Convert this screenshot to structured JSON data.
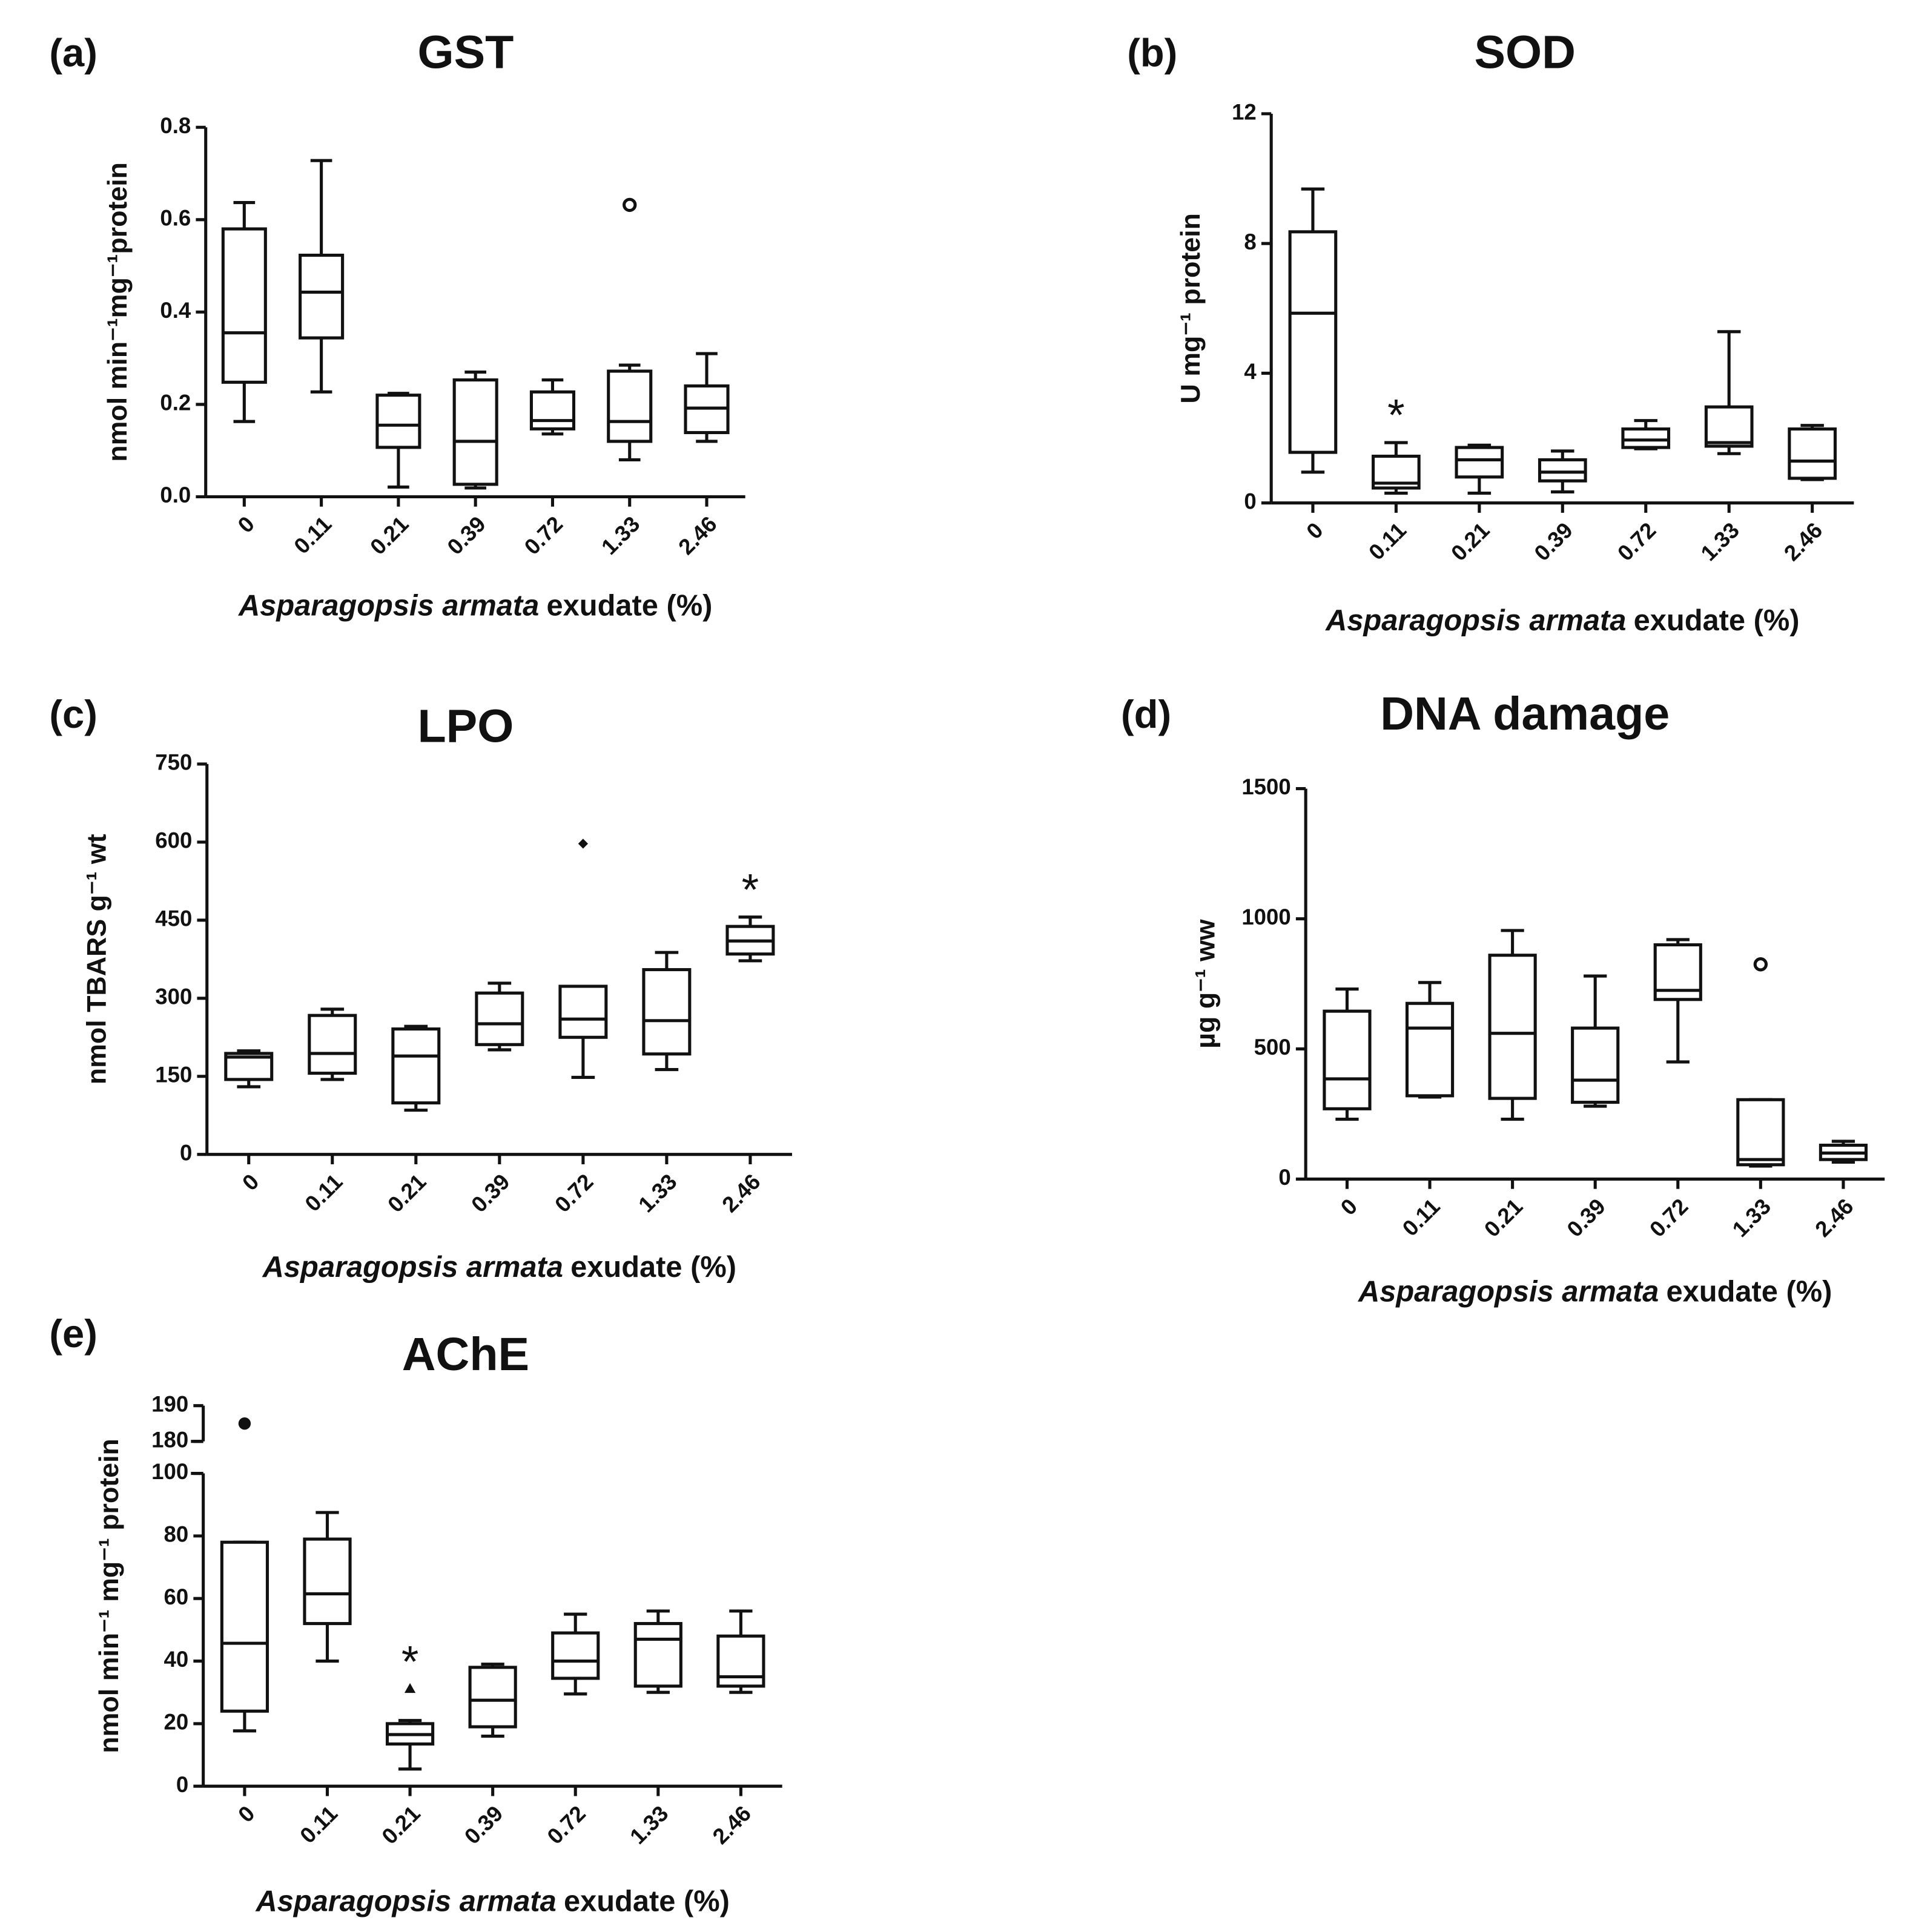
{
  "chart_data": [
    {
      "type": "box",
      "panel": "(a)",
      "title": "GST",
      "ylabel": "nmol min⁻¹mg⁻¹protein",
      "xlabel": [
        "Asparagopsis armata",
        "exudate (%)"
      ],
      "categories": [
        "0",
        "0.11",
        "0.21",
        "0.39",
        "0.72",
        "1.33",
        "2.46"
      ],
      "ylim": [
        0,
        0.8
      ],
      "yticks": [
        {
          "value": 0,
          "label": "0.0"
        },
        0.2,
        0.4,
        0.6,
        0.8
      ],
      "color": "#111111",
      "outlier_marker": "open-circle",
      "boxes": [
        {
          "min": 0.163,
          "q1": 0.248,
          "median": 0.355,
          "q3": 0.58,
          "max": 0.637,
          "outliers": []
        },
        {
          "min": 0.227,
          "q1": 0.344,
          "median": 0.443,
          "q3": 0.523,
          "max": 0.728,
          "outliers": []
        },
        {
          "min": 0.021,
          "q1": 0.107,
          "median": 0.155,
          "q3": 0.22,
          "max": 0.224,
          "outliers": []
        },
        {
          "min": 0.019,
          "q1": 0.027,
          "median": 0.12,
          "q3": 0.253,
          "max": 0.27,
          "outliers": []
        },
        {
          "min": 0.136,
          "q1": 0.147,
          "median": 0.165,
          "q3": 0.227,
          "max": 0.253,
          "outliers": []
        },
        {
          "min": 0.08,
          "q1": 0.12,
          "median": 0.163,
          "q3": 0.272,
          "max": 0.285,
          "outliers": [
            0.632
          ]
        },
        {
          "min": 0.12,
          "q1": 0.139,
          "median": 0.192,
          "q3": 0.24,
          "max": 0.31,
          "outliers": []
        }
      ],
      "annotations": []
    },
    {
      "type": "box",
      "panel": "(b)",
      "title": "SOD",
      "ylabel": "U mg⁻¹ protein",
      "xlabel": [
        "Asparagopsis armata",
        "exudate (%)"
      ],
      "categories": [
        "0",
        "0.11",
        "0.21",
        "0.39",
        "0.72",
        "1.33",
        "2.46"
      ],
      "ylim": [
        0,
        12
      ],
      "yticks": [
        0,
        4,
        8,
        12
      ],
      "color": "#111111",
      "outlier_marker": "open-circle",
      "boxes": [
        {
          "min": 0.95,
          "q1": 1.56,
          "median": 5.85,
          "q3": 8.36,
          "max": 9.68,
          "outliers": []
        },
        {
          "min": 0.3,
          "q1": 0.46,
          "median": 0.61,
          "q3": 1.44,
          "max": 1.86,
          "outliers": []
        },
        {
          "min": 0.3,
          "q1": 0.8,
          "median": 1.33,
          "q3": 1.71,
          "max": 1.78,
          "outliers": []
        },
        {
          "min": 0.34,
          "q1": 0.68,
          "median": 0.95,
          "q3": 1.33,
          "max": 1.6,
          "outliers": []
        },
        {
          "min": 1.67,
          "q1": 1.71,
          "median": 1.94,
          "q3": 2.28,
          "max": 2.54,
          "outliers": []
        },
        {
          "min": 1.52,
          "q1": 1.75,
          "median": 1.86,
          "q3": 2.96,
          "max": 5.28,
          "outliers": []
        },
        {
          "min": 0.72,
          "q1": 0.76,
          "median": 1.29,
          "q3": 2.28,
          "max": 2.39,
          "outliers": []
        }
      ],
      "annotations": [
        {
          "category": "0.11",
          "text": "*"
        }
      ]
    },
    {
      "type": "box",
      "panel": "(c)",
      "title": "LPO",
      "ylabel": "nmol TBARS g⁻¹ wt",
      "xlabel": [
        "Asparagopsis armata",
        "exudate (%)"
      ],
      "categories": [
        "0",
        "0.11",
        "0.21",
        "0.39",
        "0.72",
        "1.33",
        "2.46"
      ],
      "ylim": [
        0,
        750
      ],
      "yticks": [
        0,
        150,
        300,
        450,
        600,
        750
      ],
      "color": "#111111",
      "outlier_marker": "diamond",
      "boxes": [
        {
          "min": 130,
          "q1": 144,
          "median": 187,
          "q3": 194,
          "max": 199,
          "outliers": []
        },
        {
          "min": 144,
          "q1": 156,
          "median": 194,
          "q3": 267,
          "max": 279,
          "outliers": []
        },
        {
          "min": 85,
          "q1": 99,
          "median": 189,
          "q3": 241,
          "max": 246,
          "outliers": []
        },
        {
          "min": 201,
          "q1": 211,
          "median": 251,
          "q3": 310,
          "max": 329,
          "outliers": []
        },
        {
          "min": 148,
          "q1": 225,
          "median": 260,
          "q3": 323,
          "max": 323,
          "outliers": [
            597
          ]
        },
        {
          "min": 163,
          "q1": 193,
          "median": 257,
          "q3": 355,
          "max": 388,
          "outliers": []
        },
        {
          "min": 372,
          "q1": 385,
          "median": 410,
          "q3": 438,
          "max": 456,
          "outliers": []
        }
      ],
      "annotations": [
        {
          "category": "2.46",
          "text": "*"
        }
      ]
    },
    {
      "type": "box",
      "panel": "(d)",
      "title": "DNA damage",
      "ylabel": "µg g⁻¹ ww",
      "xlabel": [
        "Asparagopsis armata",
        "exudate (%)"
      ],
      "categories": [
        "0",
        "0.11",
        "0.21",
        "0.39",
        "0.72",
        "1.33",
        "2.46"
      ],
      "ylim": [
        0,
        1500
      ],
      "yticks": [
        0,
        500,
        1000,
        1500
      ],
      "color": "#111111",
      "outlier_marker": "open-circle",
      "boxes": [
        {
          "min": 230,
          "q1": 270,
          "median": 385,
          "q3": 645,
          "max": 730,
          "outliers": []
        },
        {
          "min": 315,
          "q1": 320,
          "median": 580,
          "q3": 675,
          "max": 755,
          "outliers": []
        },
        {
          "min": 230,
          "q1": 310,
          "median": 560,
          "q3": 860,
          "max": 955,
          "outliers": []
        },
        {
          "min": 280,
          "q1": 295,
          "median": 380,
          "q3": 580,
          "max": 780,
          "outliers": []
        },
        {
          "min": 450,
          "q1": 690,
          "median": 725,
          "q3": 900,
          "max": 920,
          "outliers": []
        },
        {
          "min": 50,
          "q1": 55,
          "median": 75,
          "q3": 305,
          "max": 305,
          "outliers": [
            825
          ]
        },
        {
          "min": 65,
          "q1": 75,
          "median": 100,
          "q3": 130,
          "max": 145,
          "outliers": []
        }
      ],
      "annotations": []
    },
    {
      "type": "box",
      "panel": "(e)",
      "title": "AChE",
      "ylabel": "nmol min⁻¹ mg⁻¹ protein",
      "xlabel": [
        "Asparagopsis armata",
        "exudate (%)"
      ],
      "categories": [
        "0",
        "0.11",
        "0.21",
        "0.39",
        "0.72",
        "1.33",
        "2.46"
      ],
      "ylim": [
        0,
        190
      ],
      "ybreak": [
        100,
        180
      ],
      "yticks": [
        0,
        20,
        40,
        60,
        80,
        100,
        180,
        190
      ],
      "color": "#111111",
      "outlier_marker": "dot",
      "boxes": [
        {
          "min": 17.7,
          "q1": 24,
          "median": 45.7,
          "q3": 78,
          "max": 78,
          "outliers": [
            185
          ]
        },
        {
          "min": 40,
          "q1": 52,
          "median": 61.5,
          "q3": 79,
          "max": 87.5,
          "outliers": []
        },
        {
          "min": 5.5,
          "q1": 13.5,
          "median": 16.5,
          "q3": 20,
          "max": 21,
          "outliers": [
            31
          ],
          "outlier_marker": "triangle"
        },
        {
          "min": 16,
          "q1": 19,
          "median": 27.5,
          "q3": 38,
          "max": 39,
          "outliers": []
        },
        {
          "min": 29.5,
          "q1": 34.5,
          "median": 40,
          "q3": 49,
          "max": 55,
          "outliers": []
        },
        {
          "min": 30,
          "q1": 32,
          "median": 47,
          "q3": 52,
          "max": 56,
          "outliers": []
        },
        {
          "min": 30,
          "q1": 32,
          "median": 35,
          "q3": 48,
          "max": 56,
          "outliers": []
        }
      ],
      "annotations": [
        {
          "category": "0.21",
          "text": "*"
        }
      ]
    }
  ]
}
